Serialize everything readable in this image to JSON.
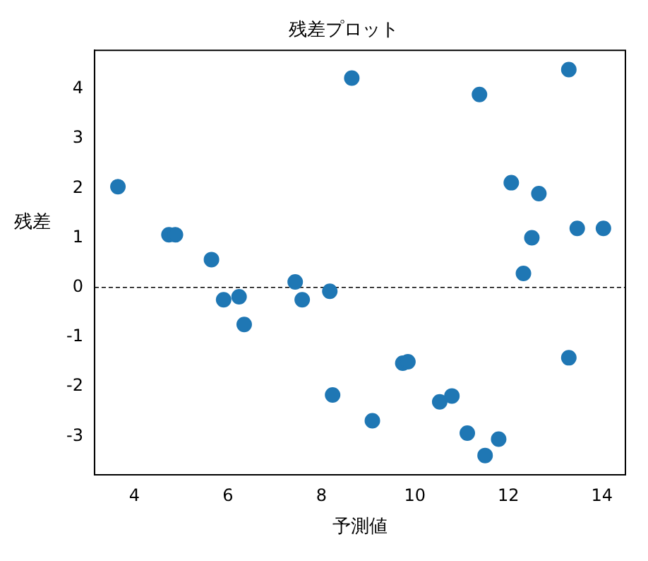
{
  "chart_data": {
    "type": "scatter",
    "title": "残差プロット",
    "xlabel": "予測値",
    "ylabel": "残差",
    "x": [
      3.65,
      4.74,
      4.88,
      5.65,
      5.91,
      6.24,
      6.35,
      7.44,
      7.59,
      8.18,
      8.24,
      8.65,
      9.09,
      9.74,
      9.85,
      10.53,
      10.79,
      11.12,
      11.5,
      11.79,
      11.38,
      12.06,
      12.65,
      12.32,
      12.5,
      13.29,
      13.29,
      13.47,
      14.03
    ],
    "series": [
      {
        "color": "#1f77b4",
        "values": [
          2.03,
          1.06,
          1.06,
          0.56,
          -0.25,
          -0.19,
          -0.75,
          0.11,
          -0.25,
          -0.08,
          -2.17,
          4.22,
          -2.69,
          -1.53,
          -1.5,
          -2.31,
          -2.19,
          -2.94,
          -3.39,
          -3.06,
          3.89,
          2.11,
          1.89,
          0.28,
          1.0,
          4.39,
          -1.42,
          1.19,
          1.19
        ]
      }
    ],
    "xlim": [
      3.15,
      14.5
    ],
    "ylim": [
      -3.78,
      4.78
    ],
    "xticks": [
      4,
      6,
      8,
      10,
      12,
      14
    ],
    "yticks": [
      -3,
      -2,
      -1,
      0,
      1,
      2,
      3,
      4
    ],
    "ref_lines": [
      {
        "axis": "y",
        "value": 0,
        "color": "#000000",
        "line_style": "dashed"
      }
    ],
    "grid": false,
    "legend": false,
    "marker": "circle"
  }
}
